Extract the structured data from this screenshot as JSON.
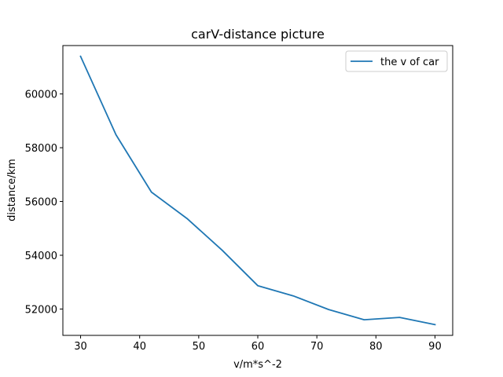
{
  "chart_data": {
    "type": "line",
    "title": "carV-distance picture",
    "xlabel": "v/m*s^-2",
    "ylabel": "distance/km",
    "x": [
      30,
      36,
      42,
      48,
      54,
      60,
      66,
      72,
      78,
      84,
      90
    ],
    "series": [
      {
        "name": "the v of car",
        "color": "#1f77b4",
        "values": [
          61400,
          58480,
          56350,
          55370,
          54180,
          52870,
          52490,
          51980,
          51600,
          51690,
          51420
        ]
      }
    ],
    "xlim": [
      27,
      93
    ],
    "ylim": [
      51020,
      61800
    ],
    "xticks": [
      30,
      40,
      50,
      60,
      70,
      80,
      90
    ],
    "yticks": [
      52000,
      54000,
      56000,
      58000,
      60000
    ],
    "grid": false,
    "legend_position": "top-right"
  }
}
